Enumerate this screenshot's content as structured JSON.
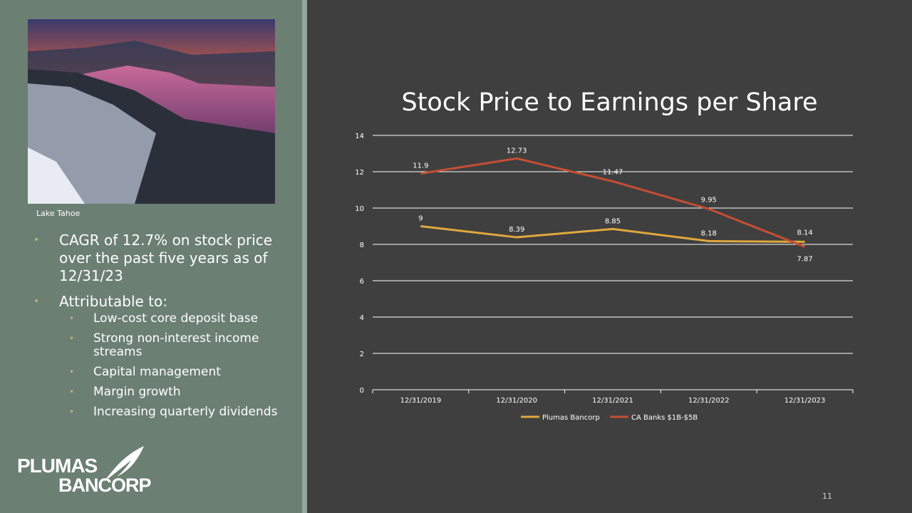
{
  "sidebar": {
    "photo_caption": "Lake Tahoe",
    "bullets": [
      "CAGR of 12.7% on stock price over the past five years as of 12/31/23",
      "Attributable to:"
    ],
    "sub_bullets": [
      "Low-cost core deposit base",
      "Strong non-interest income streams",
      "Capital management",
      "Margin growth",
      "Increasing quarterly dividends"
    ],
    "bullet_color": "#b7b479",
    "logo": {
      "line1": "PLUMAS",
      "line2": "BANCORP"
    }
  },
  "page_number": "11",
  "chart_data": {
    "type": "line",
    "title": "Stock Price to Earnings per Share",
    "categories": [
      "12/31/2019",
      "12/31/2020",
      "12/31/2021",
      "12/31/2022",
      "12/31/2023"
    ],
    "series": [
      {
        "name": "Plumas Bancorp",
        "values": [
          9,
          8.39,
          8.85,
          8.18,
          8.14
        ],
        "labels": [
          "9",
          "8.39",
          "8.85",
          "8.18",
          "8.14"
        ],
        "color": "#e0a83c"
      },
      {
        "name": "CA Banks $1B-$5B",
        "values": [
          11.9,
          12.73,
          11.47,
          9.95,
          7.87
        ],
        "labels": [
          "11.9",
          "12.73",
          "11.47",
          "9.95",
          "7.87"
        ],
        "color": "#c44e35"
      }
    ],
    "ylim": [
      0,
      14
    ],
    "yticks": [
      "0",
      "2",
      "4",
      "6",
      "8",
      "10",
      "12",
      "14"
    ],
    "grid": true,
    "legend": "bottom"
  }
}
